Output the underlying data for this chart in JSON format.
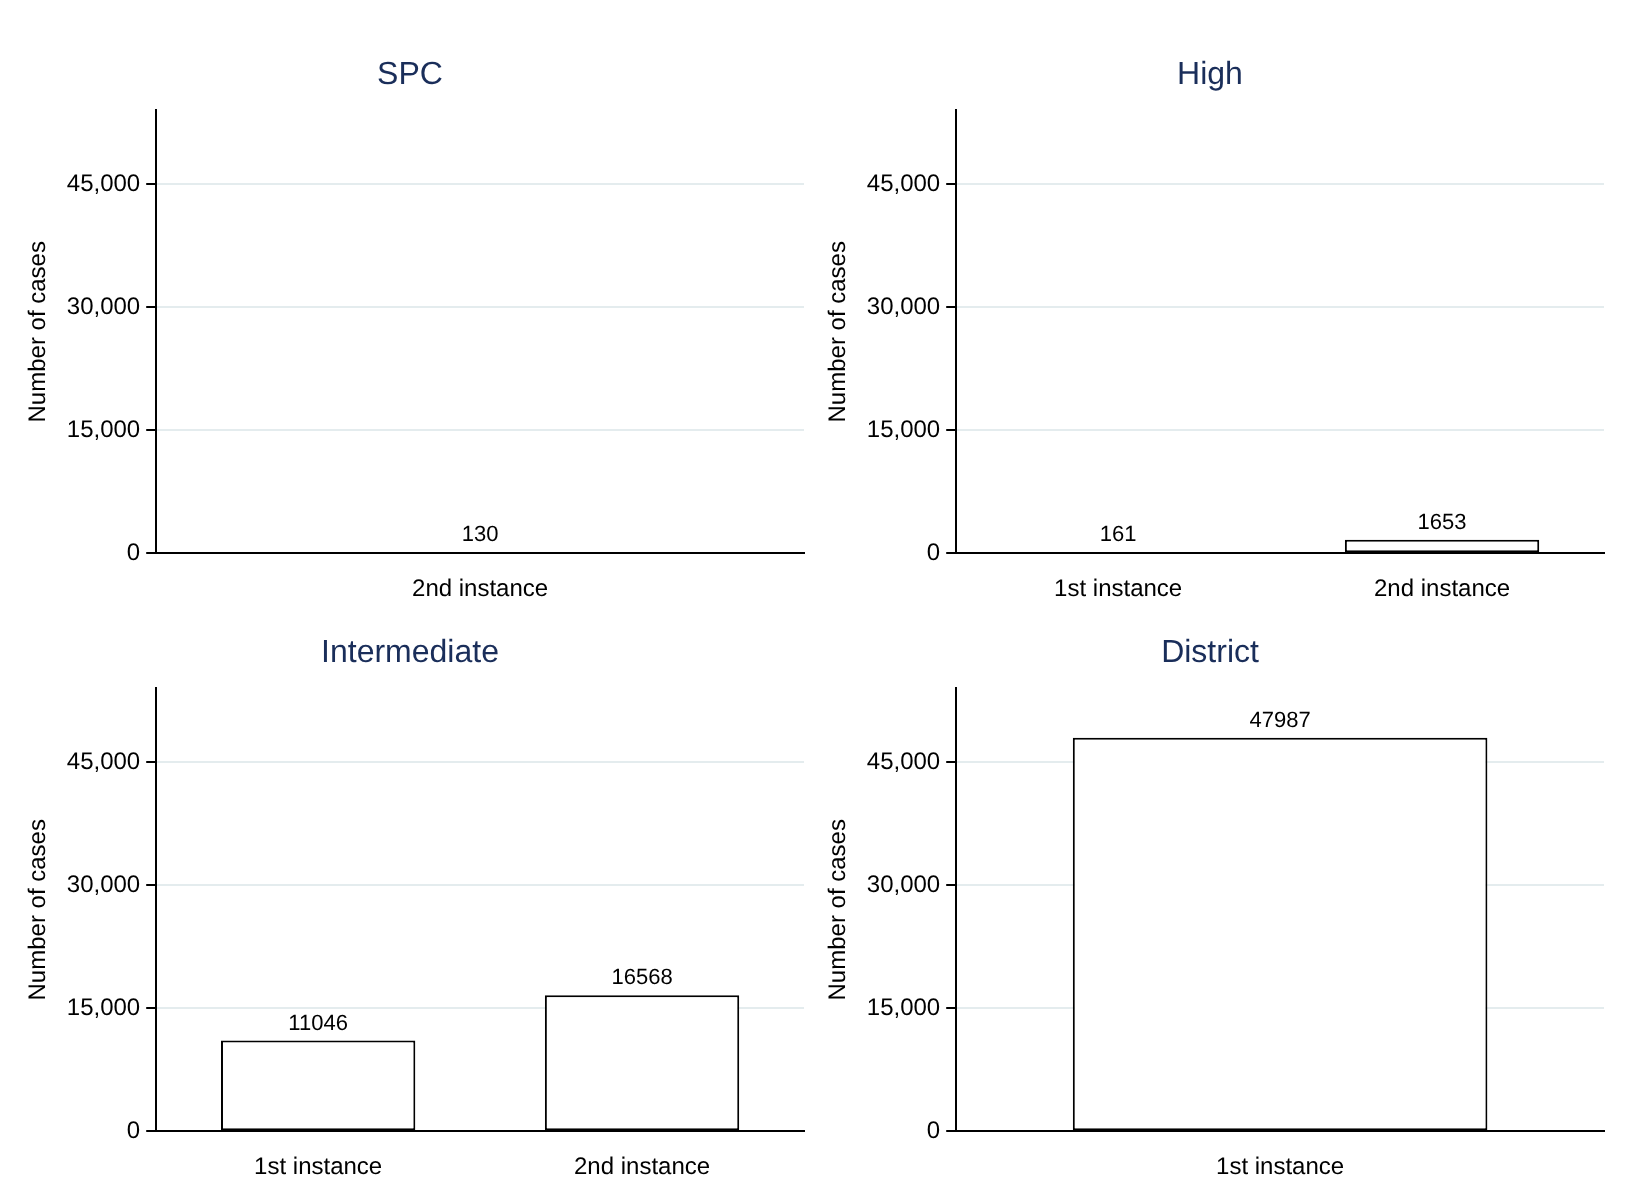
{
  "chart_data": [
    {
      "type": "bar",
      "title": "SPC",
      "ylabel": "Number of cases",
      "categories": [
        "2nd instance"
      ],
      "values": [
        130
      ],
      "colors": [
        "#000000"
      ],
      "ylim": [
        0,
        54000
      ],
      "yticks": [
        {
          "value": 0,
          "label": "0"
        },
        {
          "value": 15000,
          "label": "15,000"
        },
        {
          "value": 30000,
          "label": "30,000"
        },
        {
          "value": 45000,
          "label": "45,000"
        }
      ],
      "grid": "y",
      "data_labels": true
    },
    {
      "type": "bar",
      "title": "High",
      "ylabel": "Number of cases",
      "categories": [
        "1st instance",
        "2nd instance"
      ],
      "values": [
        161,
        1653
      ],
      "colors": [
        "#000000",
        "#ffffff"
      ],
      "ylim": [
        0,
        54000
      ],
      "yticks": [
        {
          "value": 0,
          "label": "0"
        },
        {
          "value": 15000,
          "label": "15,000"
        },
        {
          "value": 30000,
          "label": "30,000"
        },
        {
          "value": 45000,
          "label": "45,000"
        }
      ],
      "grid": "y",
      "data_labels": true
    },
    {
      "type": "bar",
      "title": "Intermediate",
      "ylabel": "Number of cases",
      "categories": [
        "1st instance",
        "2nd instance"
      ],
      "values": [
        11046,
        16568
      ],
      "color": "#ffffff",
      "ylim": [
        0,
        54000
      ],
      "yticks": [
        {
          "value": 0,
          "label": "0"
        },
        {
          "value": 15000,
          "label": "15,000"
        },
        {
          "value": 30000,
          "label": "30,000"
        },
        {
          "value": 45000,
          "label": "45,000"
        }
      ],
      "grid": "y",
      "data_labels": true
    },
    {
      "type": "bar",
      "title": "District",
      "ylabel": "Number of cases",
      "categories": [
        "1st instance"
      ],
      "values": [
        47987
      ],
      "color": "#ffffff",
      "ylim": [
        0,
        54000
      ],
      "yticks": [
        {
          "value": 0,
          "label": "0"
        },
        {
          "value": 15000,
          "label": "15,000"
        },
        {
          "value": 30000,
          "label": "30,000"
        },
        {
          "value": 45000,
          "label": "45,000"
        }
      ],
      "grid": "y",
      "data_labels": true
    }
  ]
}
